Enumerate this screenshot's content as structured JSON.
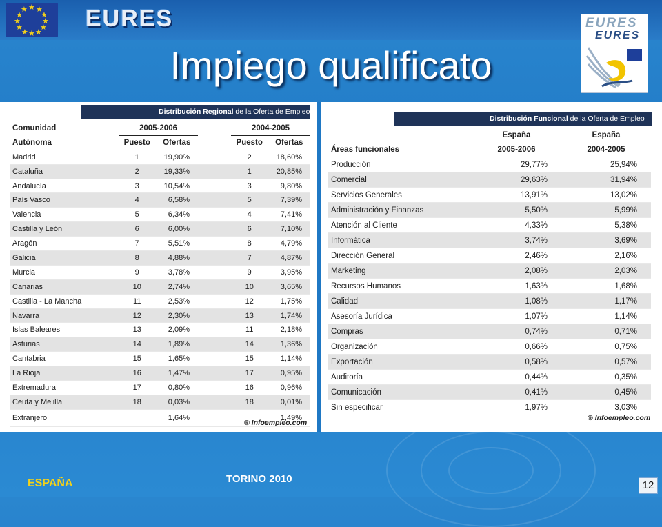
{
  "header": {
    "brand": "EURES",
    "title": "Impiego qualificato"
  },
  "logo": {
    "line1": "EURES",
    "line2": "EURES"
  },
  "table_regional": {
    "caption_bold": "Distribución Regional",
    "caption_rest": " de la Oferta de Empleo",
    "col_region_1": "Comunidad",
    "col_region_2": "Autónoma",
    "period_a": "2005-2006",
    "period_b": "2004-2005",
    "col_puesto": "Puesto",
    "col_ofertas": "Ofertas",
    "rows": [
      [
        "Madrid",
        "1",
        "19,90%",
        "2",
        "18,60%"
      ],
      [
        "Cataluña",
        "2",
        "19,33%",
        "1",
        "20,85%"
      ],
      [
        "Andalucía",
        "3",
        "10,54%",
        "3",
        "9,80%"
      ],
      [
        "País Vasco",
        "4",
        "6,58%",
        "5",
        "7,39%"
      ],
      [
        "Valencia",
        "5",
        "6,34%",
        "4",
        "7,41%"
      ],
      [
        "Castilla y León",
        "6",
        "6,00%",
        "6",
        "7,10%"
      ],
      [
        "Aragón",
        "7",
        "5,51%",
        "8",
        "4,79%"
      ],
      [
        "Galicia",
        "8",
        "4,88%",
        "7",
        "4,87%"
      ],
      [
        "Murcia",
        "9",
        "3,78%",
        "9",
        "3,95%"
      ],
      [
        "Canarias",
        "10",
        "2,74%",
        "10",
        "3,65%"
      ],
      [
        "Castilla - La Mancha",
        "11",
        "2,53%",
        "12",
        "1,75%"
      ],
      [
        "Navarra",
        "12",
        "2,30%",
        "13",
        "1,74%"
      ],
      [
        "Islas Baleares",
        "13",
        "2,09%",
        "11",
        "2,18%"
      ],
      [
        "Asturias",
        "14",
        "1,89%",
        "14",
        "1,36%"
      ],
      [
        "Cantabria",
        "15",
        "1,65%",
        "15",
        "1,14%"
      ],
      [
        "La Rioja",
        "16",
        "1,47%",
        "17",
        "0,95%"
      ],
      [
        "Extremadura",
        "17",
        "0,80%",
        "16",
        "0,96%"
      ],
      [
        "Ceuta y Melilla",
        "18",
        "0,03%",
        "18",
        "0,01%"
      ],
      [
        "Extranjero",
        "",
        "1,64%",
        "",
        "1,49%"
      ]
    ],
    "credit": "® Infoempleo.com"
  },
  "table_functional": {
    "caption_bold": "Distribución Funcional",
    "caption_rest": " de la Oferta de Empleo",
    "col_area": "Áreas funcionales",
    "col_a_1": "España",
    "col_a_2": "2005-2006",
    "col_b_1": "España",
    "col_b_2": "2004-2005",
    "rows": [
      [
        "Producción",
        "29,77%",
        "25,94%"
      ],
      [
        "Comercial",
        "29,63%",
        "31,94%"
      ],
      [
        "Servicios Generales",
        "13,91%",
        "13,02%"
      ],
      [
        "Administración y Finanzas",
        "5,50%",
        "5,99%"
      ],
      [
        "Atención al Cliente",
        "4,33%",
        "5,38%"
      ],
      [
        "Informática",
        "3,74%",
        "3,69%"
      ],
      [
        "Dirección General",
        "2,46%",
        "2,16%"
      ],
      [
        "Marketing",
        "2,08%",
        "2,03%"
      ],
      [
        "Recursos Humanos",
        "1,63%",
        "1,68%"
      ],
      [
        "Calidad",
        "1,08%",
        "1,17%"
      ],
      [
        "Asesoría Jurídica",
        "1,07%",
        "1,14%"
      ],
      [
        "Compras",
        "0,74%",
        "0,71%"
      ],
      [
        "Organización",
        "0,66%",
        "0,75%"
      ],
      [
        "Exportación",
        "0,58%",
        "0,57%"
      ],
      [
        "Auditoría",
        "0,44%",
        "0,35%"
      ],
      [
        "Comunicación",
        "0,41%",
        "0,45%"
      ],
      [
        "Sin especificar",
        "1,97%",
        "3,03%"
      ]
    ],
    "credit": "® Infoempleo.com"
  },
  "footer": {
    "country": "ESPAÑA",
    "event": "TORINO 2010",
    "page": "12"
  },
  "colors": {
    "background": "#1f78c4",
    "header_bar": "#1f3358",
    "footer_country": "#f3d21a"
  }
}
